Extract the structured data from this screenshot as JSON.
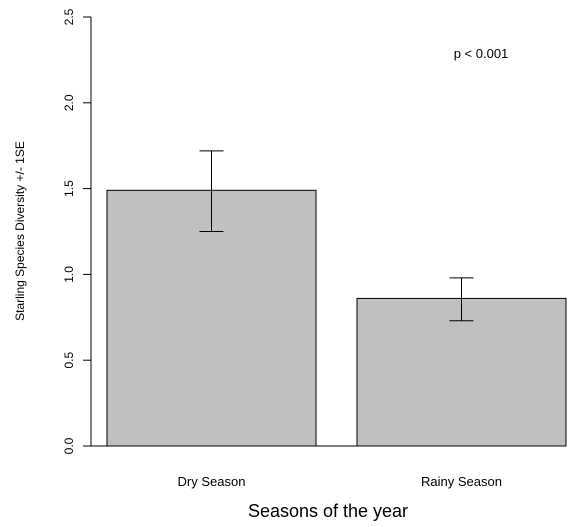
{
  "chart_data": {
    "type": "bar",
    "title": "",
    "xlabel": "Seasons of the year",
    "ylabel": "Starling Species Diversity +/- 1SE",
    "categories": [
      "Dry Season",
      "Rainy Season"
    ],
    "values": [
      1.49,
      0.86
    ],
    "error_low": [
      1.25,
      0.73
    ],
    "error_high": [
      1.72,
      0.98
    ],
    "ylim": [
      0,
      2.5
    ],
    "yticks": [
      "0.0",
      "0.5",
      "1.0",
      "1.5",
      "2.0",
      "2.5"
    ],
    "annotation": "p < 0.001",
    "bar_color": "#c0c0c0",
    "grid": false,
    "legend": "none"
  }
}
